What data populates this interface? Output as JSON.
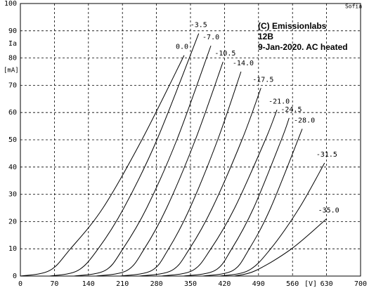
{
  "chart_data": {
    "type": "line",
    "corner_text": "Sofia",
    "annotation": [
      "(C) Emissionlabs",
      "12B",
      "9-Jan-2020.  AC heated"
    ],
    "y_label": [
      "Ia",
      "[mA]"
    ],
    "x_label": "[V]",
    "color": "#000000",
    "grid": true,
    "xlim": [
      0,
      700
    ],
    "xticks": [
      0,
      70,
      140,
      210,
      280,
      350,
      420,
      490,
      560,
      630,
      700
    ],
    "ylim": [
      0,
      100
    ],
    "yticks": [
      0,
      10,
      20,
      30,
      40,
      50,
      60,
      70,
      80,
      90,
      100
    ],
    "series": [
      {
        "name": "0.0",
        "x": [
          0,
          60,
          103,
          170,
          250,
          337
        ],
        "values": [
          0,
          2,
          10,
          25,
          50,
          81
        ]
      },
      {
        "name": "-3.5",
        "x": [
          60,
          118,
          160,
          213,
          281,
          367
        ],
        "values": [
          0,
          2,
          10,
          25,
          50,
          89
        ]
      },
      {
        "name": "-7.0",
        "x": [
          110,
          174,
          211,
          260,
          322,
          392
        ],
        "values": [
          0,
          2,
          10,
          25,
          50,
          84.5
        ]
      },
      {
        "name": "-10.5",
        "x": [
          155,
          219,
          255,
          301,
          360,
          417
        ],
        "values": [
          0,
          2,
          10,
          25,
          50,
          78.6
        ]
      },
      {
        "name": "-14.0",
        "x": [
          205,
          270,
          305,
          349,
          406,
          454
        ],
        "values": [
          0,
          2,
          10,
          25,
          50,
          75
        ]
      },
      {
        "name": "-17.5",
        "x": [
          245,
          311,
          348,
          395,
          456,
          495
        ],
        "values": [
          0,
          2,
          10,
          25,
          50,
          69
        ]
      },
      {
        "name": "-21.0",
        "x": [
          290,
          354,
          392,
          441,
          504,
          528
        ],
        "values": [
          0,
          2,
          10,
          25,
          50,
          61
        ]
      },
      {
        "name": "-24.5",
        "x": [
          335,
          400,
          435,
          480,
          537,
          553
        ],
        "values": [
          0,
          2,
          10,
          25,
          50,
          58
        ]
      },
      {
        "name": "-28.0",
        "x": [
          375,
          437,
          471,
          515,
          580
        ],
        "values": [
          0,
          2,
          10,
          25,
          54
        ]
      },
      {
        "name": "-31.5",
        "x": [
          410,
          469,
          515,
          574,
          626
        ],
        "values": [
          0,
          2,
          10,
          25,
          41.5
        ]
      },
      {
        "name": "-35.0",
        "x": [
          440,
          484,
          558,
          630
        ],
        "values": [
          0,
          2,
          10,
          21
        ]
      }
    ]
  }
}
